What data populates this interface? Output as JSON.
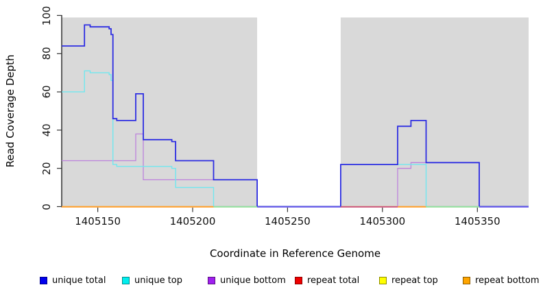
{
  "chart_data": {
    "type": "line",
    "step": true,
    "title": "",
    "xlabel": "Coordinate in Reference Genome",
    "ylabel": "Read Coverage Depth",
    "xlim": [
      1405131,
      1405377
    ],
    "ylim": [
      0,
      100
    ],
    "x_ticks": [
      1405150,
      1405200,
      1405250,
      1405300,
      1405350
    ],
    "y_ticks": [
      0,
      20,
      40,
      60,
      80,
      100
    ],
    "plot_bg_color": "#d9d9d9",
    "gap_region": {
      "from": 1405234,
      "to": 1405278,
      "color": "#ffffff"
    },
    "series": [
      {
        "name": "unique total",
        "color": "#2c2ce2",
        "width": 1.8,
        "points": [
          [
            1405131,
            84
          ],
          [
            1405143,
            95
          ],
          [
            1405146,
            94
          ],
          [
            1405156,
            93
          ],
          [
            1405157,
            90
          ],
          [
            1405158,
            46
          ],
          [
            1405160,
            45
          ],
          [
            1405170,
            59
          ],
          [
            1405174,
            35
          ],
          [
            1405189,
            34
          ],
          [
            1405191,
            24
          ],
          [
            1405211,
            14
          ],
          [
            1405234,
            0
          ],
          [
            1405278,
            22
          ],
          [
            1405308,
            42
          ],
          [
            1405315,
            45
          ],
          [
            1405323,
            23
          ],
          [
            1405351,
            0
          ]
        ]
      },
      {
        "name": "unique top",
        "color": "#70e7ef",
        "width": 1.4,
        "points": [
          [
            1405131,
            60
          ],
          [
            1405143,
            71
          ],
          [
            1405146,
            70
          ],
          [
            1405156,
            69
          ],
          [
            1405157,
            66
          ],
          [
            1405158,
            22
          ],
          [
            1405160,
            21
          ],
          [
            1405189,
            20
          ],
          [
            1405191,
            10
          ],
          [
            1405211,
            0
          ],
          [
            1405278,
            22
          ],
          [
            1405323,
            0
          ]
        ]
      },
      {
        "name": "unique bottom",
        "color": "#bd82dc",
        "width": 1.3,
        "points": [
          [
            1405131,
            24
          ],
          [
            1405170,
            38
          ],
          [
            1405174,
            14
          ],
          [
            1405234,
            0
          ],
          [
            1405308,
            20
          ],
          [
            1405315,
            23
          ],
          [
            1405351,
            0
          ]
        ]
      },
      {
        "name": "repeat total",
        "color": "#dc3545",
        "width": 1.2,
        "points": [
          [
            1405131,
            0
          ]
        ]
      },
      {
        "name": "repeat top",
        "color": "#ffff00",
        "width": 1.2,
        "points": [
          [
            1405131,
            0
          ]
        ]
      },
      {
        "name": "repeat bottom",
        "color": "#ffa033",
        "width": 1.2,
        "points": [
          [
            1405131,
            0
          ]
        ]
      }
    ],
    "baseline_segments": [
      {
        "from": 1405131,
        "to": 1405211,
        "color": "#ffa033"
      },
      {
        "from": 1405211,
        "to": 1405234,
        "color": "#98df9a"
      },
      {
        "from": 1405234,
        "to": 1405278,
        "color": "#6a5ce8"
      },
      {
        "from": 1405278,
        "to": 1405308,
        "color": "#cc5577"
      },
      {
        "from": 1405308,
        "to": 1405323,
        "color": "#ffa033"
      },
      {
        "from": 1405323,
        "to": 1405351,
        "color": "#98df9a"
      },
      {
        "from": 1405351,
        "to": 1405377,
        "color": "#6a5ce8"
      }
    ],
    "legend": [
      {
        "label": "unique total",
        "fill": "#0000ee",
        "border": "#00008b"
      },
      {
        "label": "unique top",
        "fill": "#00eeee",
        "border": "#008b8b"
      },
      {
        "label": "unique bottom",
        "fill": "#a020f0",
        "border": "#5a1080"
      },
      {
        "label": "repeat total",
        "fill": "#ee0000",
        "border": "#8b0000"
      },
      {
        "label": "repeat top",
        "fill": "#ffff00",
        "border": "#8b8b00"
      },
      {
        "label": "repeat bottom",
        "fill": "#ffa500",
        "border": "#8b5a00"
      }
    ],
    "legend_position": "bottom"
  }
}
